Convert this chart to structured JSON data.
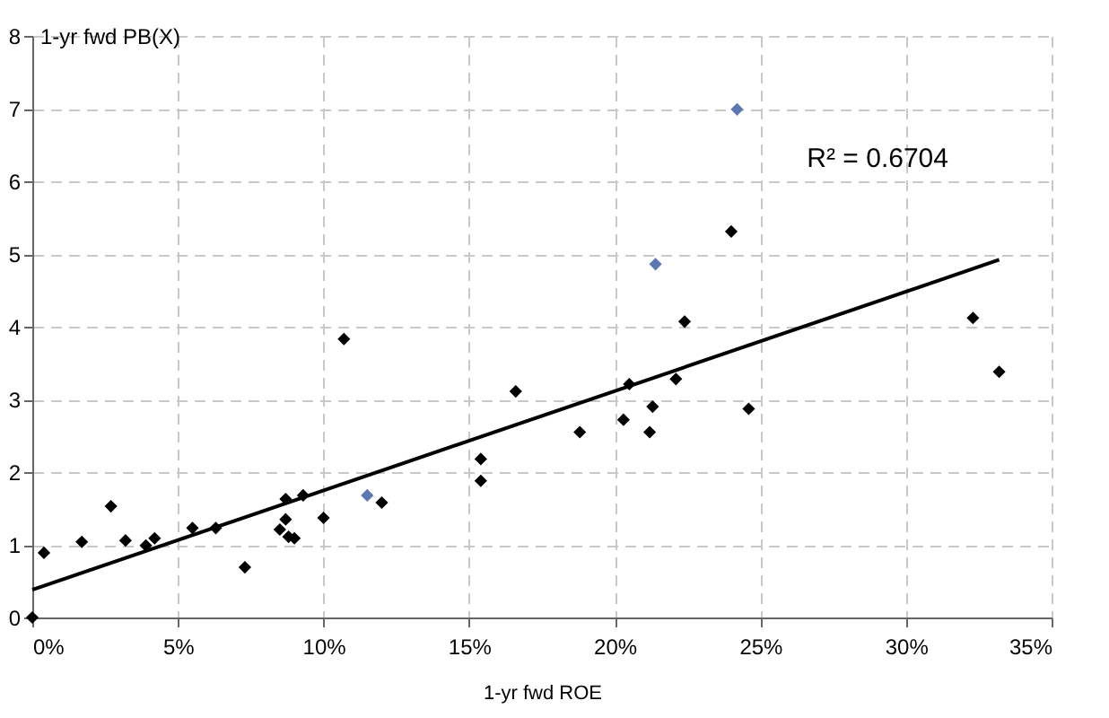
{
  "chart_data": {
    "type": "scatter",
    "xlabel": "1-yr fwd ROE",
    "ylabel": "1-yr fwd PB(X)",
    "xlim": [
      0,
      35
    ],
    "ylim": [
      0,
      8
    ],
    "xticks": [
      {
        "value": 0,
        "label": "0%"
      },
      {
        "value": 5,
        "label": "5%"
      },
      {
        "value": 10,
        "label": "10%"
      },
      {
        "value": 15,
        "label": "15%"
      },
      {
        "value": 20,
        "label": "20%"
      },
      {
        "value": 25,
        "label": "25%"
      },
      {
        "value": 30,
        "label": "30%"
      },
      {
        "value": 35,
        "label": "35%"
      }
    ],
    "yticks": [
      0,
      1,
      2,
      3,
      4,
      5,
      6,
      7,
      8
    ],
    "grid": true,
    "marker": "diamond",
    "series": [
      {
        "color": "#000000",
        "x": [
          0,
          0.4,
          1.7,
          2.7,
          3.2,
          3.9,
          4.2,
          5.5,
          6.3,
          7.3,
          8.7,
          8.7,
          8.5,
          8.8,
          9.0,
          9.3,
          10.0,
          10.7,
          12.0,
          15.4,
          15.4,
          16.6,
          18.8,
          20.3,
          20.5,
          21.2,
          21.3,
          22.1,
          24.6,
          33.2,
          22.4,
          24.0,
          32.3
        ],
        "values": [
          0,
          0.89,
          1.04,
          1.53,
          1.06,
          0.99,
          1.09,
          1.23,
          1.23,
          0.69,
          1.63,
          1.35,
          1.21,
          1.11,
          1.09,
          1.68,
          1.37,
          3.83,
          1.58,
          2.18,
          1.88,
          3.11,
          2.55,
          2.72,
          3.21,
          2.55,
          2.9,
          3.28,
          2.87,
          3.38,
          4.07,
          5.31,
          4.12
        ]
      },
      {
        "color": "#5b78b0",
        "x": [
          11.5,
          21.4,
          24.2
        ],
        "values": [
          1.68,
          4.86,
          6.99
        ]
      },
      {
        "type": "line",
        "color": "#000000",
        "marker": "none",
        "line_style": "solid",
        "x": [
          0,
          33.2
        ],
        "values": [
          0.38,
          4.92
        ]
      }
    ],
    "annotations": [
      "R² = 0.6704"
    ]
  }
}
